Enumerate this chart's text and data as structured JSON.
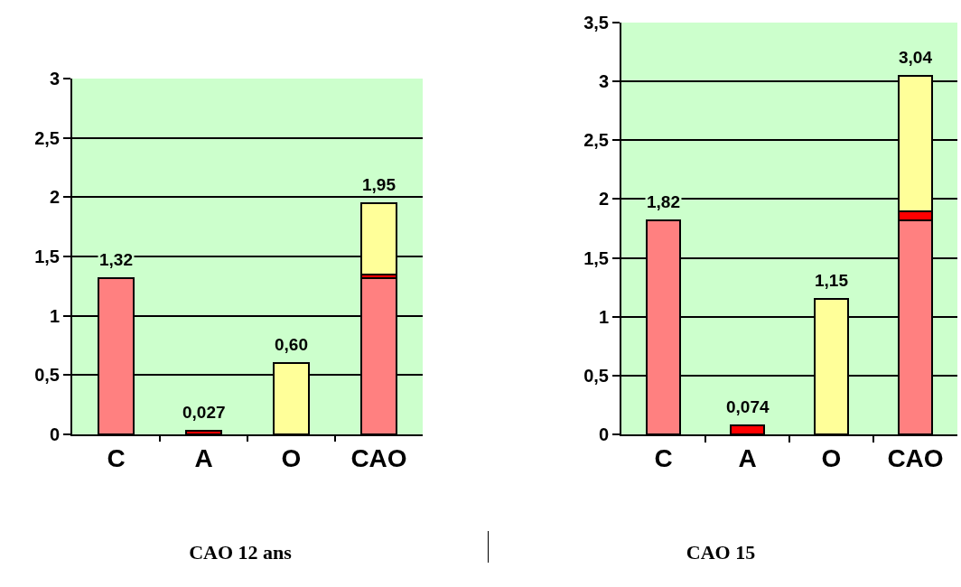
{
  "chart_data": [
    {
      "type": "bar",
      "title": "CAO 12 ans",
      "stacked": true,
      "categories": [
        "C",
        "A",
        "O",
        "CAO"
      ],
      "series": [
        {
          "color": "#ff8080",
          "values": [
            1.32,
            null,
            null,
            1.32
          ]
        },
        {
          "color": "#ff0000",
          "values": [
            null,
            0.027,
            null,
            0.027
          ]
        },
        {
          "color": "#ffff99",
          "values": [
            null,
            null,
            0.6,
            0.6
          ]
        }
      ],
      "totals": [
        "1,32",
        "0,027",
        "0,60",
        "1,95"
      ],
      "ylim": [
        0,
        3
      ],
      "yticks": [
        0,
        {
          "value": 0.5,
          "label": "0,5"
        },
        1,
        {
          "value": 1.5,
          "label": "1,5"
        },
        2,
        {
          "value": 2.5,
          "label": "2,5"
        },
        3
      ],
      "grid": "y"
    },
    {
      "type": "bar",
      "title": "CAO 15",
      "stacked": true,
      "categories": [
        "C",
        "A",
        "O",
        "CAO"
      ],
      "series": [
        {
          "color": "#ff8080",
          "values": [
            1.82,
            null,
            null,
            1.82
          ]
        },
        {
          "color": "#ff0000",
          "values": [
            null,
            0.074,
            null,
            0.074
          ]
        },
        {
          "color": "#ffff99",
          "values": [
            null,
            null,
            1.15,
            1.15
          ]
        }
      ],
      "totals": [
        "1,82",
        "0,074",
        "1,15",
        "3,04"
      ],
      "ylim": [
        0,
        3.5
      ],
      "yticks": [
        0,
        {
          "value": 0.5,
          "label": "0,5"
        },
        1,
        {
          "value": 1.5,
          "label": "1,5"
        },
        2,
        {
          "value": 2.5,
          "label": "2,5"
        },
        3,
        {
          "value": 3.5,
          "label": "3,5"
        }
      ],
      "grid": "y"
    }
  ]
}
